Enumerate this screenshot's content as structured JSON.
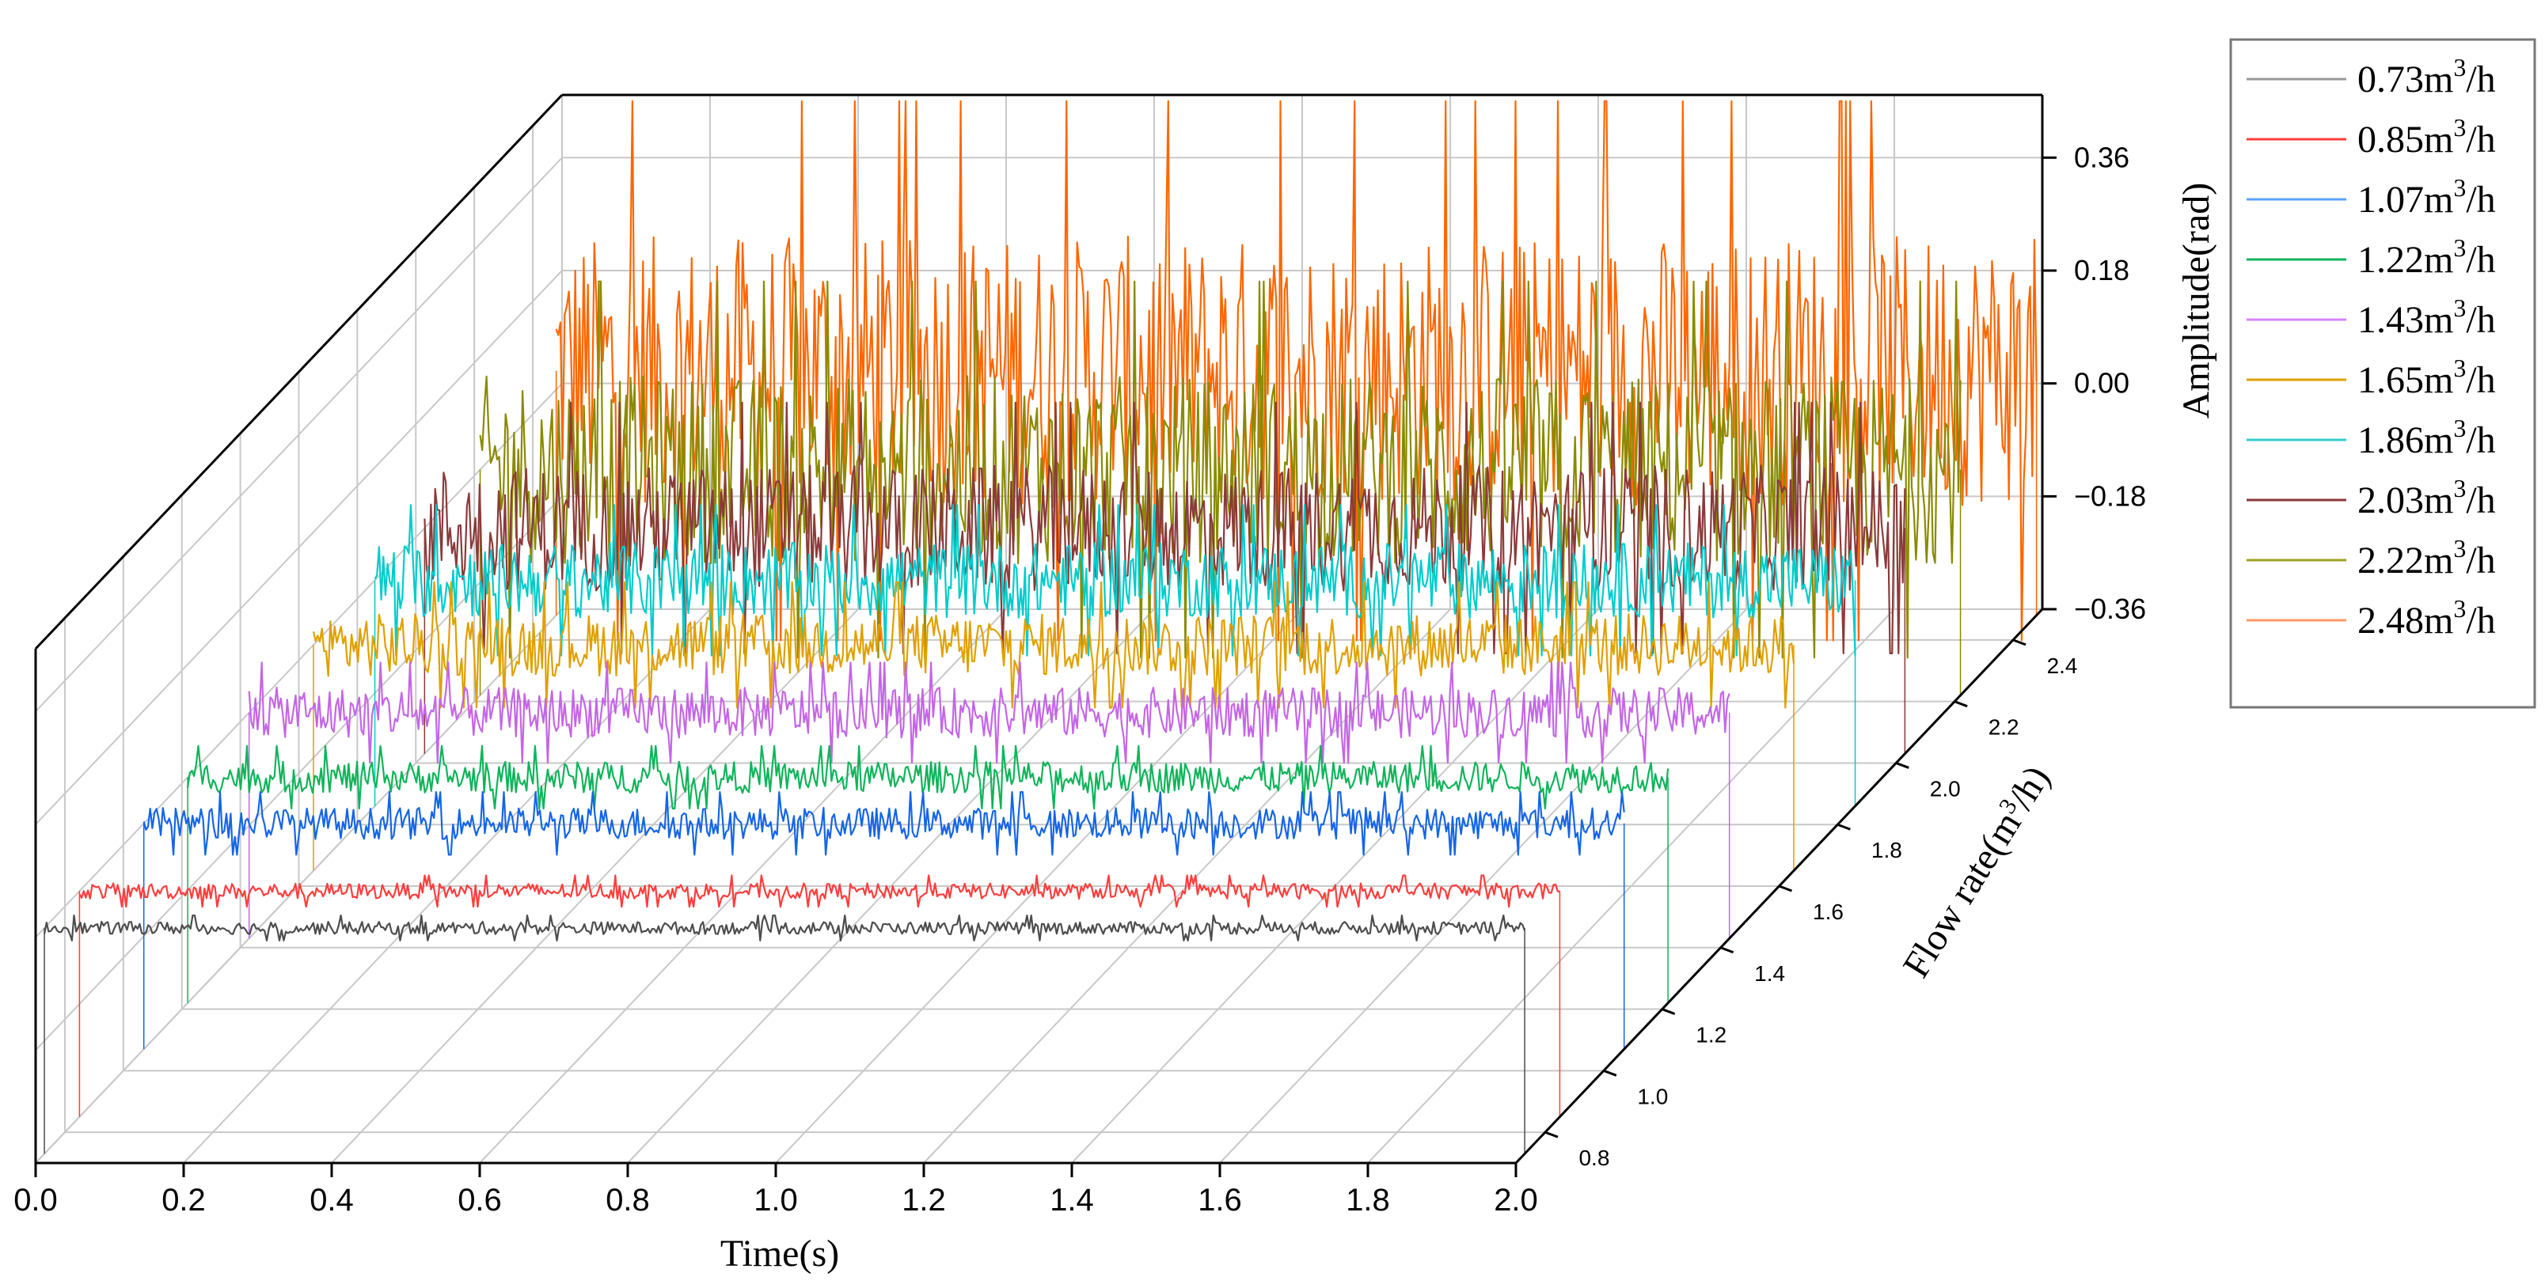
{
  "chart_data": {
    "type": "line",
    "projection": "3d-waterfall",
    "title": "",
    "xlabel": "Time(s)",
    "ylabel": "Flow rate(m³/h)",
    "zlabel": "Amplitude(rad)",
    "xlim": [
      0.0,
      2.0
    ],
    "ylim": [
      0.7,
      2.5
    ],
    "zlim": [
      -0.36,
      0.46
    ],
    "x_ticks": [
      "0.0",
      "0.2",
      "0.4",
      "0.6",
      "0.8",
      "1.0",
      "1.2",
      "1.4",
      "1.6",
      "1.8",
      "2.0"
    ],
    "y_ticks": [
      "0.8",
      "1.0",
      "1.2",
      "1.4",
      "1.6",
      "1.8",
      "2.0",
      "2.2",
      "2.4"
    ],
    "y_tick_values": [
      0.8,
      1.0,
      1.2,
      1.4,
      1.6,
      1.8,
      2.0,
      2.2,
      2.4
    ],
    "z_ticks": [
      "−0.36",
      "−0.18",
      "0.00",
      "0.18",
      "0.36"
    ],
    "z_tick_values": [
      -0.36,
      -0.18,
      0.0,
      0.18,
      0.36
    ],
    "grid": true,
    "legend_position": "right",
    "samples_per_series": 700,
    "series": [
      {
        "name": "0.73m³/h",
        "label_base": "0.73m",
        "label_unit": "/h",
        "flow": 0.73,
        "color": "#4d4d4d",
        "legend_color": "#999999",
        "amplitude_range": [
          -0.02,
          0.02
        ],
        "mean": 0.0
      },
      {
        "name": "0.85m³/h",
        "label_base": "0.85m",
        "label_unit": "/h",
        "flow": 0.85,
        "color": "#ff3d3d",
        "legend_color": "#ff3d3d",
        "amplitude_range": [
          -0.025,
          0.025
        ],
        "mean": 0.0
      },
      {
        "name": "1.07m³/h",
        "label_base": "1.07m",
        "label_unit": "/h",
        "flow": 1.07,
        "color": "#1565e6",
        "legend_color": "#5da0ff",
        "amplitude_range": [
          -0.05,
          0.05
        ],
        "mean": 0.0
      },
      {
        "name": "1.22m³/h",
        "label_base": "1.22m",
        "label_unit": "/h",
        "flow": 1.22,
        "color": "#0fb45a",
        "legend_color": "#0fb45a",
        "amplitude_range": [
          -0.05,
          0.05
        ],
        "mean": 0.0
      },
      {
        "name": "1.43m³/h",
        "label_base": "1.43m",
        "label_unit": "/h",
        "flow": 1.43,
        "color": "#c466e6",
        "legend_color": "#d684ff",
        "amplitude_range": [
          -0.08,
          0.08
        ],
        "mean": 0.0
      },
      {
        "name": "1.65m³/h",
        "label_base": "1.65m",
        "label_unit": "/h",
        "flow": 1.65,
        "color": "#e0a000",
        "legend_color": "#e0a000",
        "amplitude_range": [
          -0.1,
          0.1
        ],
        "mean": 0.0
      },
      {
        "name": "1.86m³/h",
        "label_base": "1.86m",
        "label_unit": "/h",
        "flow": 1.86,
        "color": "#00cccc",
        "legend_color": "#33cccc",
        "amplitude_range": [
          -0.12,
          0.12
        ],
        "mean": 0.0
      },
      {
        "name": "2.03m³/h",
        "label_base": "2.03m",
        "label_unit": "/h",
        "flow": 2.03,
        "color": "#8b3a3a",
        "legend_color": "#8b3a3a",
        "amplitude_range": [
          -0.2,
          0.2
        ],
        "mean": 0.0
      },
      {
        "name": "2.22m³/h",
        "label_base": "2.22m",
        "label_unit": "/h",
        "flow": 2.22,
        "color": "#8a8a00",
        "legend_color": "#a0a020",
        "amplitude_range": [
          -0.3,
          0.3
        ],
        "mean": 0.0
      },
      {
        "name": "2.48m³/h",
        "label_base": "2.48m",
        "label_unit": "/h",
        "flow": 2.48,
        "color": "#ff6600",
        "legend_color": "#ff9966",
        "amplitude_range": [
          -0.4,
          0.46
        ],
        "mean": 0.0
      }
    ]
  }
}
